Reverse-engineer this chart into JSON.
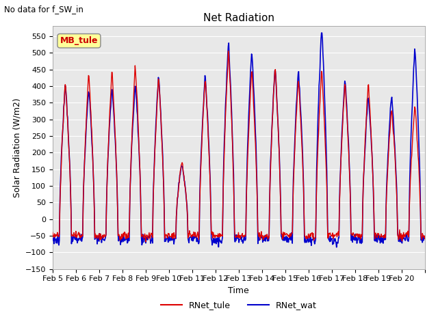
{
  "title": "Net Radiation",
  "suptitle": "No data for f_SW_in",
  "ylabel": "Solar Radiation (W/m2)",
  "xlabel": "Time",
  "ylim": [
    -150,
    580
  ],
  "yticks": [
    -150,
    -100,
    -50,
    0,
    50,
    100,
    150,
    200,
    250,
    300,
    350,
    400,
    450,
    500,
    550
  ],
  "legend_labels": [
    "RNet_tule",
    "RNet_wat"
  ],
  "color_tule": "#dd0000",
  "color_wat": "#0000cc",
  "lw_tule": 1.0,
  "lw_wat": 1.2,
  "legend_box_color": "#ffff99",
  "annotation_text": "MB_tule",
  "annotation_color": "#cc0000",
  "background_color": "#e8e8e8",
  "grid_color": "white",
  "n_days": 16,
  "start_day": 5,
  "tick_labels": [
    "Feb 5",
    "Feb 6",
    "Feb 7",
    "Feb 8",
    "Feb 9",
    "Feb 10",
    "Feb 11",
    "Feb 12",
    "Feb 13",
    "Feb 14",
    "Feb 15",
    "Feb 16",
    "Feb 17",
    "Feb 18",
    "Feb 19",
    "Feb 20",
    ""
  ]
}
